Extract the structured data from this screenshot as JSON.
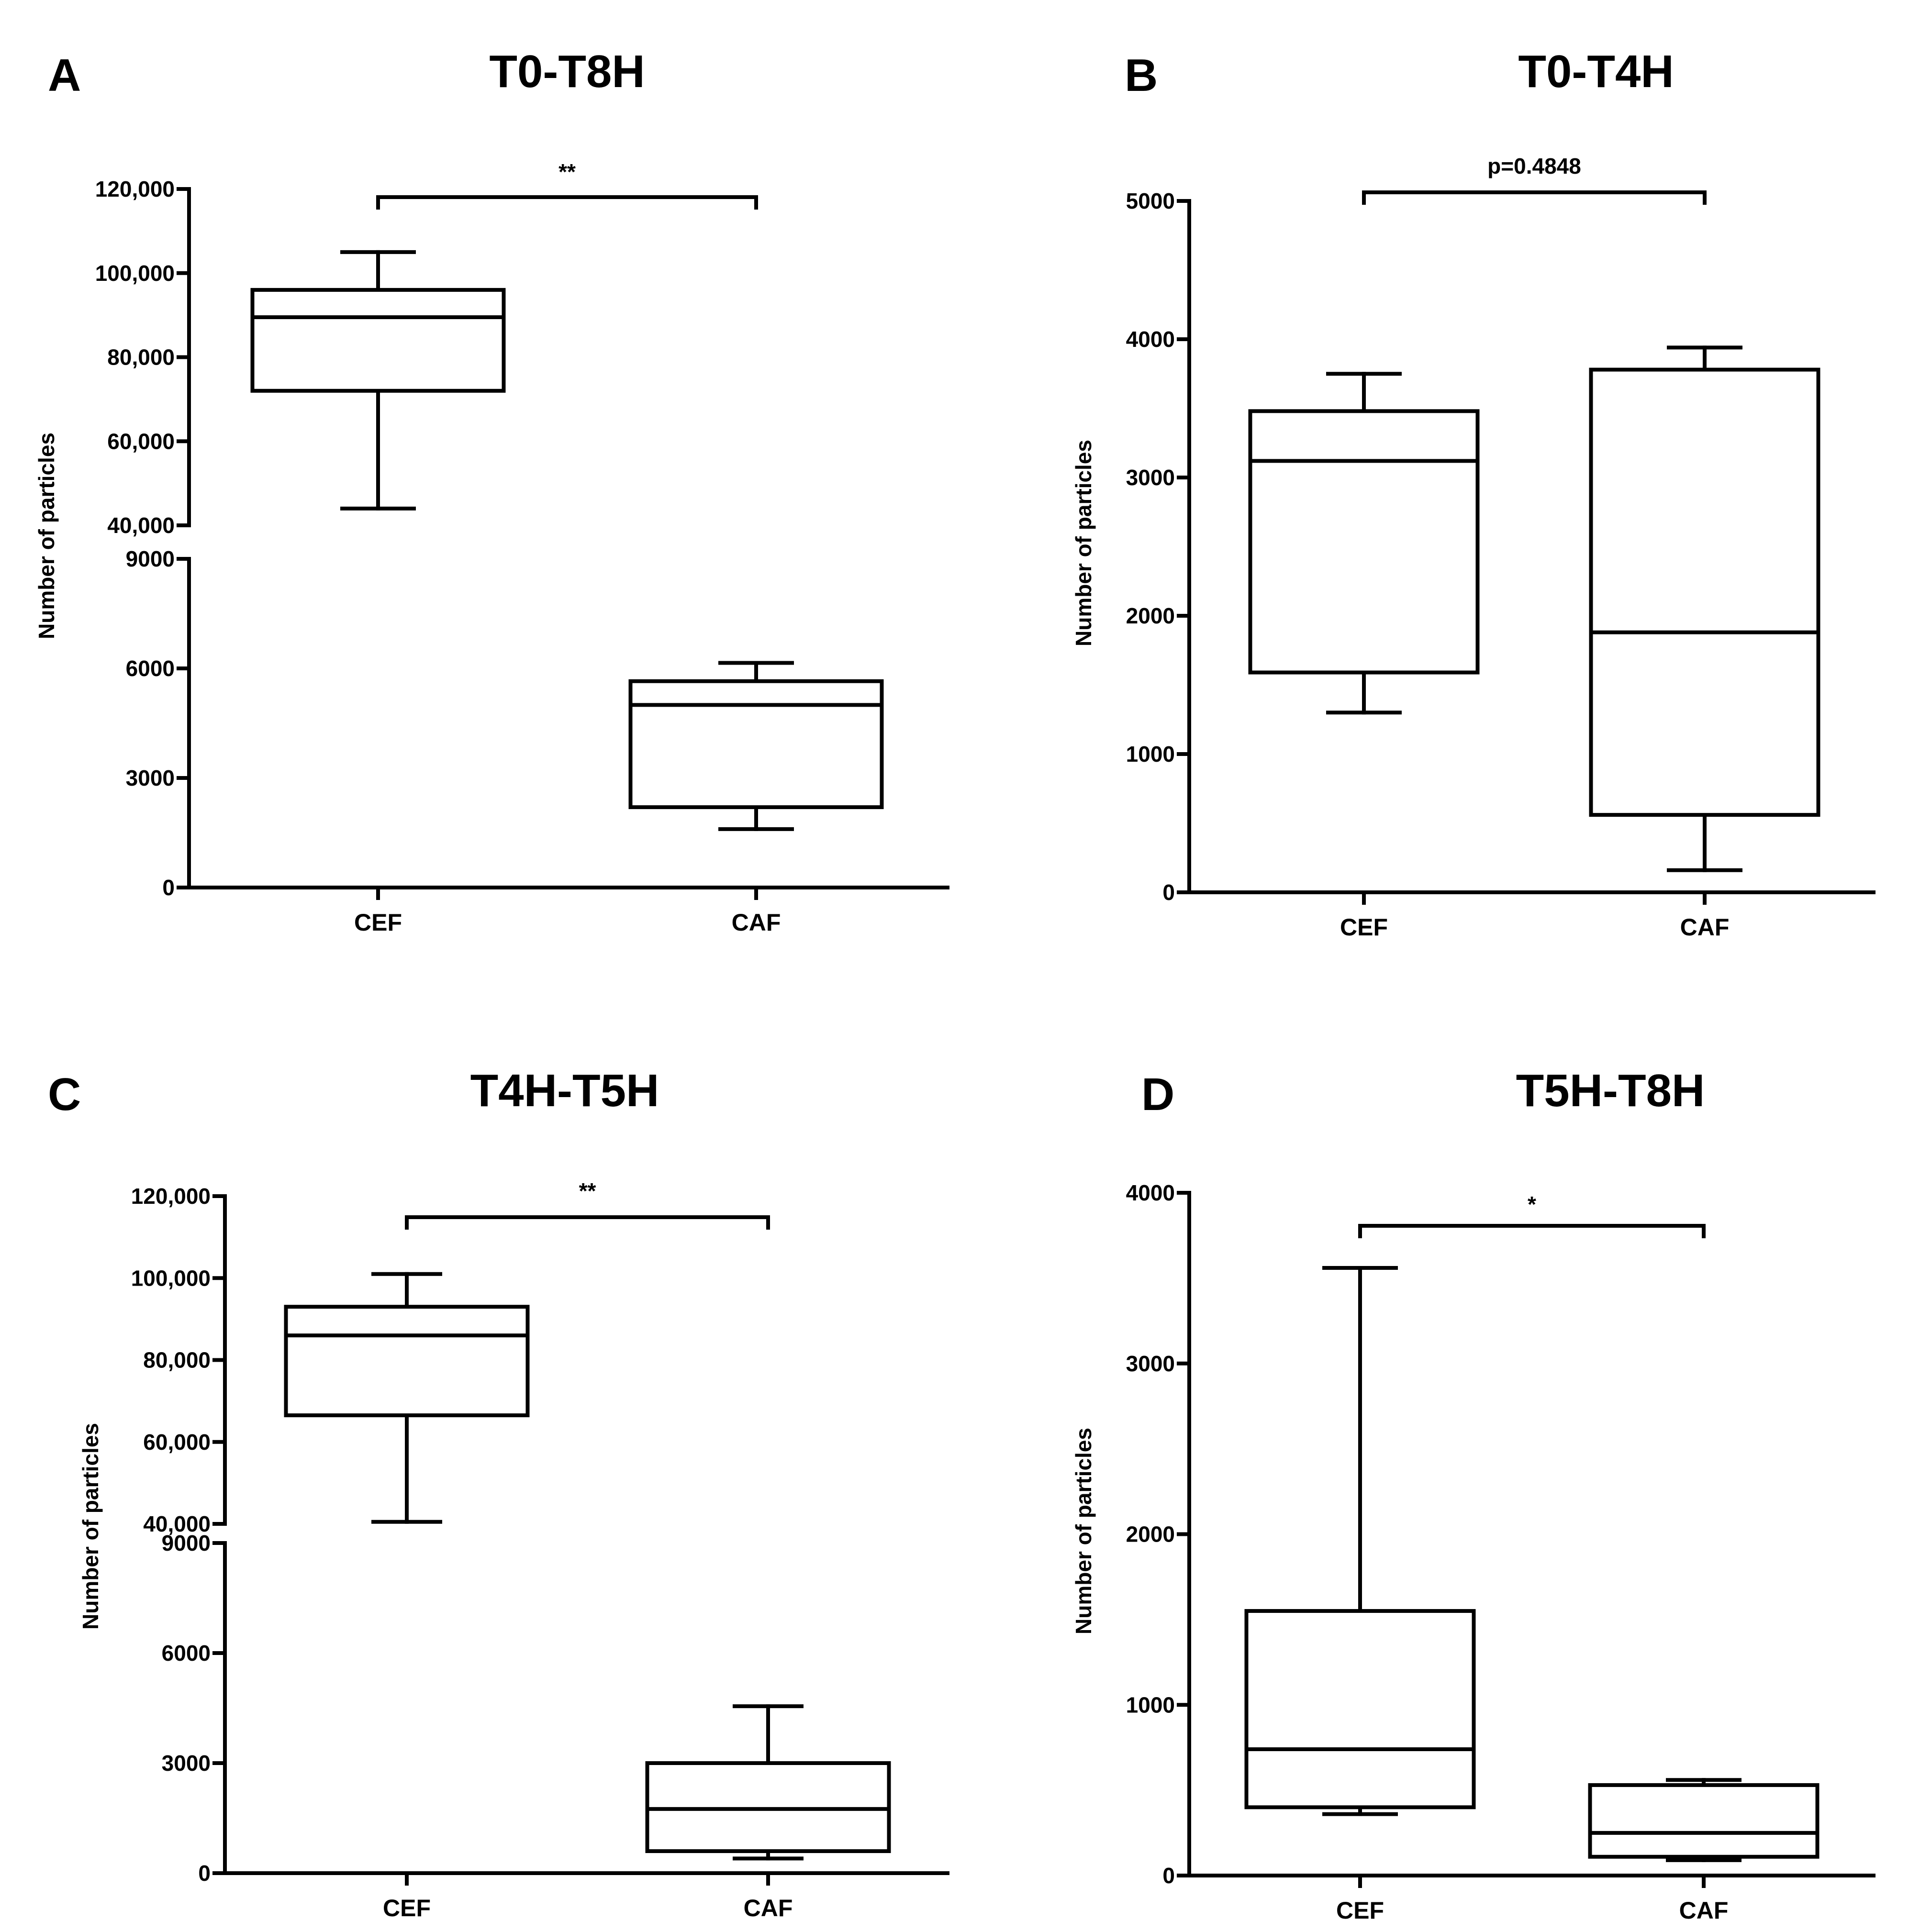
{
  "chart_data": [
    {
      "type": "box",
      "panel": "A",
      "title": "T0-T8H",
      "xlabel": "",
      "ylabel": "Number of particles",
      "categories": [
        "CEF",
        "CAF"
      ],
      "axis_break": true,
      "lower_segment": {
        "ylim": [
          0,
          9000
        ],
        "ticks": [
          0,
          3000,
          6000,
          9000
        ],
        "tick_labels": [
          "0",
          "3000",
          "6000",
          "9000"
        ]
      },
      "upper_segment": {
        "ylim": [
          40000,
          120000
        ],
        "ticks": [
          40000,
          60000,
          80000,
          100000,
          120000
        ],
        "tick_labels": [
          "40,000",
          "60,000",
          "80,000",
          "100,000",
          "120,000"
        ]
      },
      "boxes": [
        {
          "category": "CEF",
          "min": 44000,
          "q1": 72000,
          "median": 89500,
          "q3": 96000,
          "max": 105000
        },
        {
          "category": "CAF",
          "min": 1600,
          "q1": 2200,
          "median": 5000,
          "q3": 5650,
          "max": 6150
        }
      ],
      "significance": {
        "label": "**",
        "between": [
          "CEF",
          "CAF"
        ]
      }
    },
    {
      "type": "box",
      "panel": "B",
      "title": "T0-T4H",
      "xlabel": "",
      "ylabel": "Number of particles",
      "categories": [
        "CEF",
        "CAF"
      ],
      "axis_break": false,
      "ylim": [
        0,
        5000
      ],
      "ticks": [
        0,
        1000,
        2000,
        3000,
        4000,
        5000
      ],
      "tick_labels": [
        "0",
        "1000",
        "2000",
        "3000",
        "4000",
        "5000"
      ],
      "boxes": [
        {
          "category": "CEF",
          "min": 1300,
          "q1": 1590,
          "median": 3120,
          "q3": 3480,
          "max": 3750
        },
        {
          "category": "CAF",
          "min": 160,
          "q1": 560,
          "median": 1880,
          "q3": 3780,
          "max": 3940
        }
      ],
      "significance": {
        "label": "p=0.4848",
        "between": [
          "CEF",
          "CAF"
        ]
      }
    },
    {
      "type": "box",
      "panel": "C",
      "title": "T4H-T5H",
      "xlabel": "",
      "ylabel": "Number of particles",
      "categories": [
        "CEF",
        "CAF"
      ],
      "axis_break": true,
      "lower_segment": {
        "ylim": [
          0,
          9000
        ],
        "ticks": [
          0,
          3000,
          6000,
          9000
        ],
        "tick_labels": [
          "0",
          "3000",
          "6000",
          "9000"
        ]
      },
      "upper_segment": {
        "ylim": [
          40000,
          120000
        ],
        "ticks": [
          40000,
          60000,
          80000,
          100000,
          120000
        ],
        "tick_labels": [
          "40,000",
          "60,000",
          "80,000",
          "100,000",
          "120,000"
        ]
      },
      "boxes": [
        {
          "category": "CEF",
          "min": 40500,
          "q1": 66500,
          "median": 86000,
          "q3": 93000,
          "max": 101000
        },
        {
          "category": "CAF",
          "min": 400,
          "q1": 600,
          "median": 1750,
          "q3": 3000,
          "max": 4550
        }
      ],
      "significance": {
        "label": "**",
        "between": [
          "CEF",
          "CAF"
        ]
      }
    },
    {
      "type": "box",
      "panel": "D",
      "title": "T5H-T8H",
      "xlabel": "",
      "ylabel": "Number of particles",
      "categories": [
        "CEF",
        "CAF"
      ],
      "axis_break": false,
      "ylim": [
        0,
        4000
      ],
      "ticks": [
        0,
        1000,
        2000,
        3000,
        4000
      ],
      "tick_labels": [
        "0",
        "1000",
        "2000",
        "3000",
        "4000"
      ],
      "boxes": [
        {
          "category": "CEF",
          "min": 360,
          "q1": 400,
          "median": 740,
          "q3": 1550,
          "max": 3560
        },
        {
          "category": "CAF",
          "min": 90,
          "q1": 110,
          "median": 250,
          "q3": 530,
          "max": 560
        }
      ],
      "significance": {
        "label": "*",
        "between": [
          "CEF",
          "CAF"
        ]
      }
    }
  ]
}
